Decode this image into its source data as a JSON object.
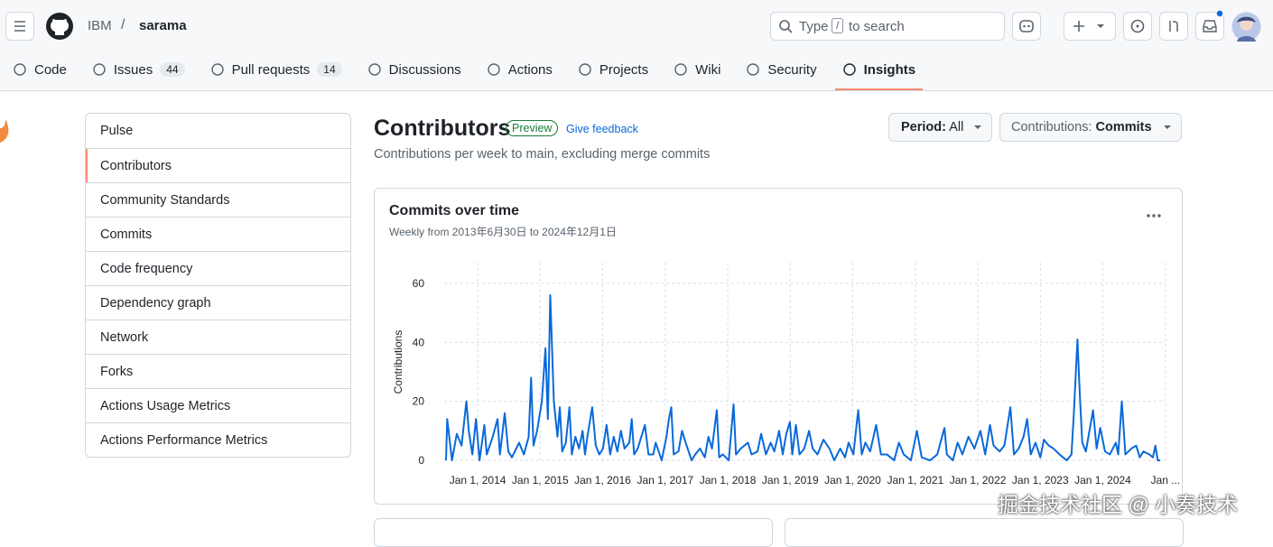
{
  "header": {
    "owner": "IBM",
    "separator": "/",
    "repo": "sarama",
    "search_pre": "Type",
    "search_key": "/",
    "search_post": "to search"
  },
  "tabs": [
    {
      "label": "Code"
    },
    {
      "label": "Issues",
      "count": 44
    },
    {
      "label": "Pull requests",
      "count": 14
    },
    {
      "label": "Discussions"
    },
    {
      "label": "Actions"
    },
    {
      "label": "Projects"
    },
    {
      "label": "Wiki"
    },
    {
      "label": "Security"
    },
    {
      "label": "Insights",
      "selected": true
    }
  ],
  "sidebar": [
    {
      "label": "Pulse"
    },
    {
      "label": "Contributors",
      "selected": true
    },
    {
      "label": "Community Standards"
    },
    {
      "label": "Commits"
    },
    {
      "label": "Code frequency"
    },
    {
      "label": "Dependency graph"
    },
    {
      "label": "Network"
    },
    {
      "label": "Forks"
    },
    {
      "label": "Actions Usage Metrics"
    },
    {
      "label": "Actions Performance Metrics"
    }
  ],
  "page": {
    "title": "Contributors",
    "badge": "Preview",
    "feedback": "Give feedback",
    "description": "Contributions per week to main, excluding merge commits",
    "period_label": "Period:",
    "period_value": "All",
    "contrib_label": "Contributions:",
    "contrib_value": "Commits"
  },
  "chart_data": {
    "type": "line",
    "title": "Commits over time",
    "subtitle": "Weekly from 2013年6月30日 to 2024年12月1日",
    "y_label": "Contributions",
    "color": "#0969da",
    "grid": true,
    "xlim": [
      "2013-06-30",
      "2024-12-01"
    ],
    "ylim": [
      0,
      67
    ],
    "yticks": [
      0,
      20,
      40,
      60
    ],
    "xticks": [
      {
        "value": "2014-01-01",
        "label": "Jan 1, 2014"
      },
      {
        "value": "2015-01-01",
        "label": "Jan 1, 2015"
      },
      {
        "value": "2016-01-01",
        "label": "Jan 1, 2016"
      },
      {
        "value": "2017-01-01",
        "label": "Jan 1, 2017"
      },
      {
        "value": "2018-01-01",
        "label": "Jan 1, 2018"
      },
      {
        "value": "2019-01-01",
        "label": "Jan 1, 2019"
      },
      {
        "value": "2020-01-01",
        "label": "Jan 1, 2020"
      },
      {
        "value": "2021-01-01",
        "label": "Jan 1, 2021"
      },
      {
        "value": "2022-01-01",
        "label": "Jan 1, 2022"
      },
      {
        "value": "2023-01-01",
        "label": "Jan 1, 2023"
      },
      {
        "value": "2024-01-01",
        "label": "Jan 1, 2024"
      },
      {
        "value": "2025-01-01",
        "label": "Jan ..."
      }
    ],
    "x": [
      "2013-06-30",
      "2013-07-07",
      "2013-08-04",
      "2013-09-01",
      "2013-09-29",
      "2013-10-27",
      "2013-11-10",
      "2013-12-01",
      "2013-12-22",
      "2014-01-12",
      "2014-02-09",
      "2014-02-23",
      "2014-03-30",
      "2014-04-27",
      "2014-05-11",
      "2014-06-08",
      "2014-06-29",
      "2014-07-20",
      "2014-08-31",
      "2014-09-28",
      "2014-10-26",
      "2014-11-09",
      "2014-11-23",
      "2014-12-14",
      "2015-01-11",
      "2015-02-01",
      "2015-02-15",
      "2015-03-01",
      "2015-03-22",
      "2015-04-12",
      "2015-04-26",
      "2015-05-10",
      "2015-05-31",
      "2015-06-21",
      "2015-07-05",
      "2015-07-26",
      "2015-08-16",
      "2015-09-06",
      "2015-09-20",
      "2015-10-04",
      "2015-11-01",
      "2015-11-22",
      "2015-12-13",
      "2016-01-03",
      "2016-01-24",
      "2016-02-14",
      "2016-03-06",
      "2016-03-27",
      "2016-04-17",
      "2016-05-08",
      "2016-06-05",
      "2016-06-19",
      "2016-07-03",
      "2016-07-24",
      "2016-09-04",
      "2016-09-25",
      "2016-10-23",
      "2016-11-06",
      "2016-12-11",
      "2017-01-08",
      "2017-01-22",
      "2017-02-05",
      "2017-02-19",
      "2017-03-19",
      "2017-04-09",
      "2017-04-30",
      "2017-06-04",
      "2017-06-25",
      "2017-07-23",
      "2017-08-20",
      "2017-09-10",
      "2017-10-01",
      "2017-10-29",
      "2017-11-12",
      "2017-12-03",
      "2018-01-07",
      "2018-02-04",
      "2018-02-18",
      "2018-03-18",
      "2018-04-29",
      "2018-05-20",
      "2018-06-24",
      "2018-07-15",
      "2018-08-12",
      "2018-09-09",
      "2018-09-30",
      "2018-10-28",
      "2018-11-18",
      "2018-12-09",
      "2018-12-30",
      "2019-01-13",
      "2019-02-03",
      "2019-02-24",
      "2019-03-24",
      "2019-04-21",
      "2019-05-12",
      "2019-06-09",
      "2019-07-14",
      "2019-08-18",
      "2019-09-15",
      "2019-10-20",
      "2019-11-17",
      "2019-12-08",
      "2020-01-05",
      "2020-02-02",
      "2020-02-23",
      "2020-03-15",
      "2020-04-12",
      "2020-05-17",
      "2020-06-14",
      "2020-07-19",
      "2020-08-30",
      "2020-09-27",
      "2020-10-25",
      "2020-12-06",
      "2021-01-10",
      "2021-02-07",
      "2021-03-28",
      "2021-05-09",
      "2021-06-20",
      "2021-07-04",
      "2021-08-08",
      "2021-09-05",
      "2021-10-03",
      "2021-11-07",
      "2021-12-12",
      "2022-01-16",
      "2022-02-13",
      "2022-03-13",
      "2022-04-03",
      "2022-05-08",
      "2022-06-05",
      "2022-07-10",
      "2022-07-31",
      "2022-08-28",
      "2022-09-25",
      "2022-10-16",
      "2022-11-06",
      "2022-12-04",
      "2023-01-01",
      "2023-01-22",
      "2023-02-19",
      "2023-03-19",
      "2023-04-23",
      "2023-06-04",
      "2023-07-02",
      "2023-07-16",
      "2023-08-06",
      "2023-08-20",
      "2023-09-03",
      "2023-09-24",
      "2023-10-15",
      "2023-11-05",
      "2023-11-26",
      "2023-12-17",
      "2024-01-14",
      "2024-02-11",
      "2024-03-17",
      "2024-03-31",
      "2024-04-21",
      "2024-05-12",
      "2024-06-16",
      "2024-07-14",
      "2024-08-04",
      "2024-08-25",
      "2024-09-29",
      "2024-10-20",
      "2024-11-03",
      "2024-11-17",
      "2024-12-01"
    ],
    "values": [
      0,
      14,
      0,
      9,
      5,
      20,
      10,
      2,
      14,
      0,
      12,
      2,
      8,
      14,
      2,
      16,
      3,
      1,
      6,
      2,
      8,
      28,
      5,
      10,
      20,
      38,
      14,
      56,
      20,
      8,
      18,
      3,
      6,
      18,
      2,
      8,
      4,
      10,
      2,
      8,
      18,
      5,
      2,
      4,
      12,
      2,
      8,
      3,
      10,
      4,
      6,
      14,
      2,
      4,
      12,
      2,
      2,
      6,
      0,
      8,
      14,
      18,
      2,
      3,
      10,
      6,
      0,
      2,
      4,
      1,
      8,
      4,
      17,
      1,
      2,
      0,
      19,
      2,
      4,
      6,
      2,
      3,
      9,
      2,
      6,
      3,
      10,
      2,
      9,
      13,
      2,
      12,
      2,
      4,
      10,
      4,
      2,
      7,
      4,
      0,
      4,
      1,
      6,
      2,
      17,
      2,
      6,
      3,
      12,
      2,
      2,
      0,
      6,
      2,
      0,
      10,
      1,
      0,
      2,
      11,
      2,
      0,
      6,
      2,
      8,
      4,
      10,
      2,
      12,
      5,
      3,
      5,
      18,
      2,
      4,
      8,
      14,
      2,
      6,
      1,
      7,
      5,
      4,
      2,
      0,
      2,
      16,
      41,
      22,
      6,
      3,
      10,
      17,
      4,
      11,
      3,
      2,
      6,
      2,
      20,
      2,
      4,
      5,
      1,
      3,
      2,
      1,
      5,
      0,
      0
    ]
  },
  "watermark": "掘金技术社区 @ 小奏技术"
}
